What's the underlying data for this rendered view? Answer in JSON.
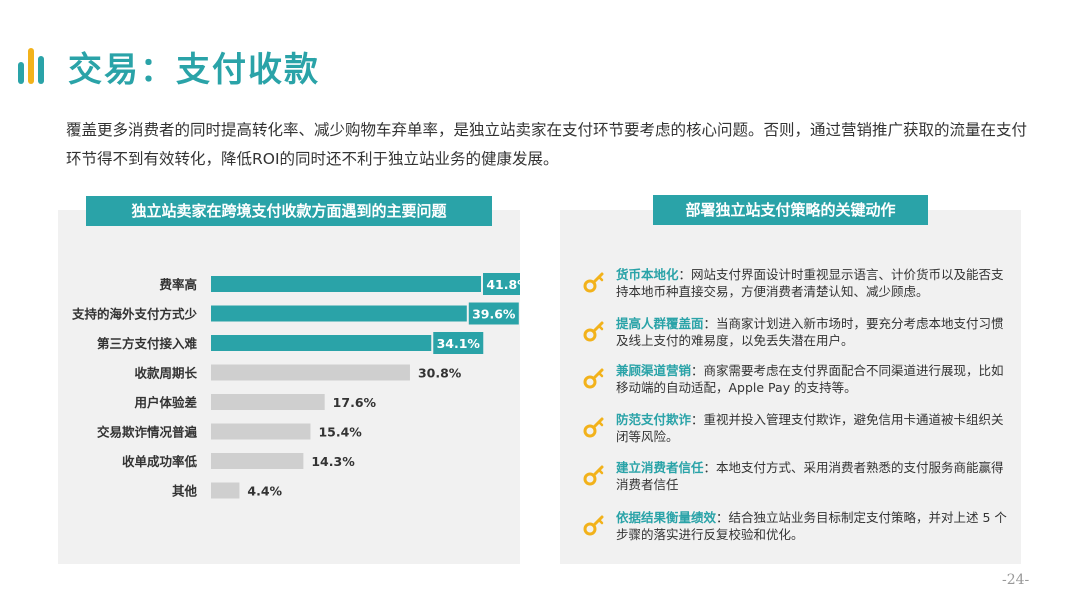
{
  "header": {
    "title": "交易：支付收款"
  },
  "intro": "覆盖更多消费者的同时提高转化率、减少购物车弃单率，是独立站卖家在支付环节要考虑的核心问题。否则，通过营销推广获取的流量在支付环节得不到有效转化，降低ROI的同时还不利于独立站业务的健康发展。",
  "left_panel": {
    "title": "独立站卖家在跨境支付收款方面遇到的主要问题"
  },
  "right_panel": {
    "title": "部署独立站支付策略的关键动作"
  },
  "colors": {
    "accent": "#2aa3a8",
    "bar_gray": "#cfcfcf",
    "key_icon": "#f2b21b",
    "logo_yellow": "#f2b21b"
  },
  "chart_data": {
    "type": "bar",
    "orientation": "horizontal",
    "categories": [
      "费率高",
      "支持的海外支付方式少",
      "第三方支付接入难",
      "收款周期长",
      "用户体验差",
      "交易欺诈情况普遍",
      "收单成功率低",
      "其他"
    ],
    "values": [
      41.8,
      39.6,
      34.1,
      30.8,
      17.6,
      15.4,
      14.3,
      4.4
    ],
    "labels": [
      "41.8%",
      "39.6%",
      "34.1%",
      "30.8%",
      "17.6%",
      "15.4%",
      "14.3%",
      "4.4%"
    ],
    "highlighted": [
      true,
      true,
      true,
      false,
      false,
      false,
      false,
      false
    ],
    "xlim": [
      0,
      45
    ],
    "grid": false,
    "legend": "none"
  },
  "actions": [
    {
      "highlight": "货币本地化",
      "text": "：网站支付界面设计时重视显示语言、计价货币以及能否支持本地币种直接交易，方便消费者清楚认知、减少顾虑。",
      "icon": "key-icon"
    },
    {
      "highlight": "提高人群覆盖面",
      "text": "：当商家计划进入新市场时，要充分考虑本地支付习惯及线上支付的难易度，以免丢失潜在用户。",
      "icon": "key-icon"
    },
    {
      "highlight": "兼顾渠道营销",
      "text": "：商家需要考虑在支付界面配合不同渠道进行展现，比如移动端的自动适配，Apple Pay 的支持等。",
      "icon": "key-icon"
    },
    {
      "highlight": "防范支付欺诈",
      "text": "：重视并投入管理支付欺诈，避免信用卡通道被卡组织关闭等风险。",
      "icon": "key-icon"
    },
    {
      "highlight": "建立消费者信任",
      "text": "：本地支付方式、采用消费者熟悉的支付服务商能赢得消费者信任",
      "icon": "key-icon"
    },
    {
      "highlight": "依据结果衡量绩效",
      "text": "：结合独立站业务目标制定支付策略，并对上述 5 个步骤的落实进行反复校验和优化。",
      "icon": "key-icon"
    }
  ],
  "footer": {
    "page": "-24-"
  }
}
